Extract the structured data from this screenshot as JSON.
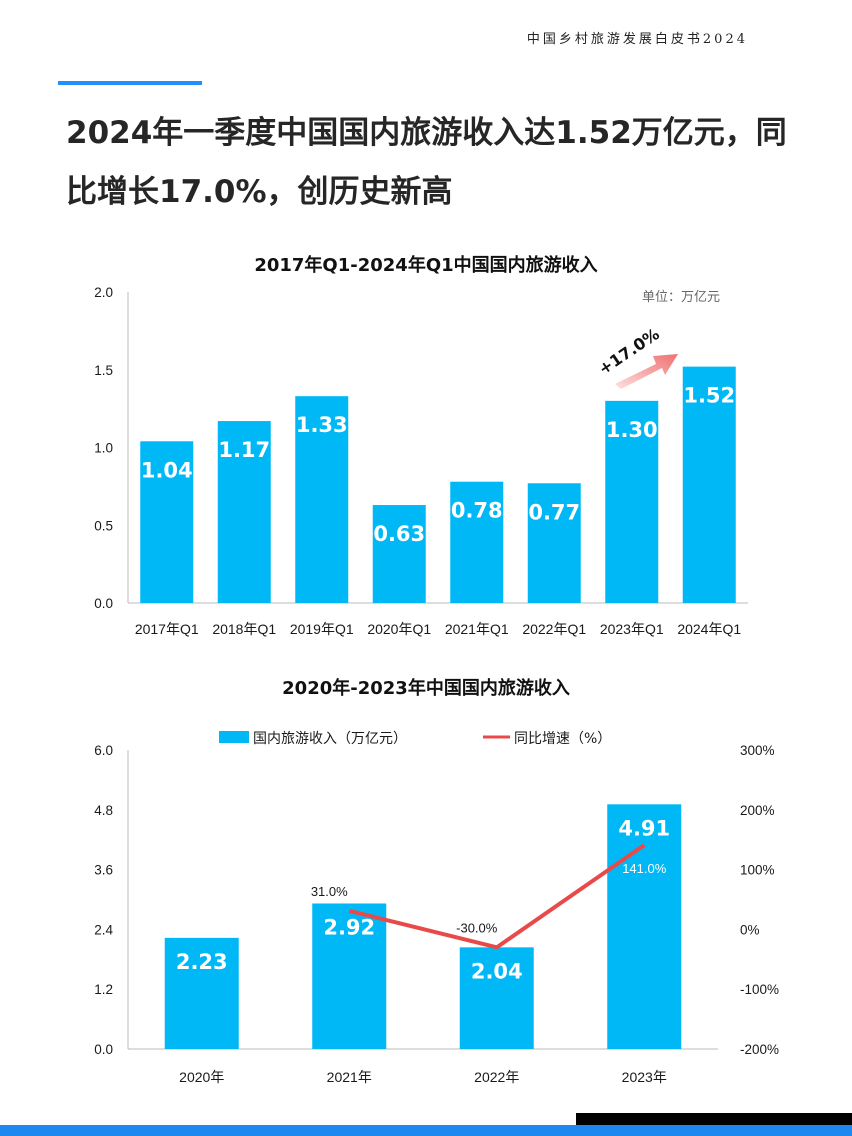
{
  "header": {
    "report_title": "中国乡村旅游发展白皮书2024"
  },
  "headline": "2024年一季度中国国内旅游收入达1.52万亿元，同比增长17.0%，创历史新高",
  "colors": {
    "bar": "#00b8f5",
    "line": "#e84a4a",
    "accent": "#1e90ff",
    "arrow": "#f47f7f"
  },
  "chart_data": [
    {
      "type": "bar",
      "title": "2017年Q1-2024年Q1中国国内旅游收入",
      "unit": "单位：万亿元",
      "categories": [
        "2017年Q1",
        "2018年Q1",
        "2019年Q1",
        "2020年Q1",
        "2021年Q1",
        "2022年Q1",
        "2023年Q1",
        "2024年Q1"
      ],
      "values": [
        1.04,
        1.17,
        1.33,
        0.63,
        0.78,
        0.77,
        1.3,
        1.52
      ],
      "value_labels": [
        "1.04",
        "1.17",
        "1.33",
        "0.63",
        "0.78",
        "0.77",
        "1.30",
        "1.52"
      ],
      "ylim": [
        0,
        2.0
      ],
      "yticks": [
        "0.0",
        "0.5",
        "1.0",
        "1.5",
        "2.0"
      ],
      "annotation": "+17.0%",
      "grid": false
    },
    {
      "type": "bar+line",
      "title": "2020年-2023年中国国内旅游收入",
      "categories": [
        "2020年",
        "2021年",
        "2022年",
        "2023年"
      ],
      "series": [
        {
          "name": "国内旅游收入（万亿元）",
          "type": "bar",
          "axis": "left",
          "values": [
            2.23,
            2.92,
            2.04,
            4.91
          ],
          "value_labels": [
            "2.23",
            "2.92",
            "2.04",
            "4.91"
          ]
        },
        {
          "name": "同比增速（%）",
          "type": "line",
          "axis": "right",
          "points": [
            {
              "category": "2021年",
              "value": 31.0,
              "label": "31.0%"
            },
            {
              "category": "2022年",
              "value": -30.0,
              "label": "-30.0%"
            },
            {
              "category": "2023年",
              "value": 141.0,
              "label": "141.0%"
            }
          ]
        }
      ],
      "ylim_left": [
        0,
        6.0
      ],
      "yticks_left": [
        "0.0",
        "1.2",
        "2.4",
        "3.6",
        "4.8",
        "6.0"
      ],
      "ylim_right": [
        -200,
        300
      ],
      "yticks_right": [
        "-200%",
        "-100%",
        "0%",
        "100%",
        "200%",
        "300%"
      ],
      "legend_position": "top",
      "grid": false
    }
  ]
}
